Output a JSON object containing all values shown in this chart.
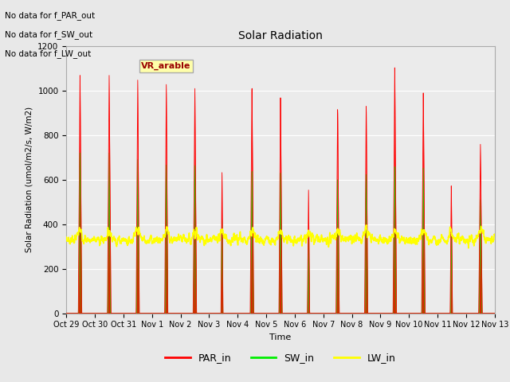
{
  "title": "Solar Radiation",
  "xlabel": "Time",
  "ylabel": "Solar Radiation (umol/m2/s, W/m2)",
  "ylim": [
    0,
    1200
  ],
  "figsize": [
    6.4,
    4.8
  ],
  "dpi": 100,
  "bg_color": "#e8e8e8",
  "plot_bg_color": "#ebebeb",
  "text_annotations": [
    "No data for f_PAR_out",
    "No data for f_SW_out",
    "No data for f_LW_out"
  ],
  "tick_labels": [
    "Oct 29",
    "Oct 30",
    "Oct 31",
    "Nov 1",
    "Nov 2",
    "Nov 3",
    "Nov 4",
    "Nov 5",
    "Nov 6",
    "Nov 7",
    "Nov 8",
    "Nov 9",
    "Nov 10",
    "Nov 11",
    "Nov 12",
    "Nov 13"
  ],
  "par_color": "#ff0000",
  "sw_color": "#00ee00",
  "lw_color": "#ffff00",
  "total_days": 15,
  "pts_per_day": 240,
  "lw_base": 330,
  "peak_heights_par": [
    1080,
    1075,
    1060,
    1045,
    1030,
    660,
    1040,
    1005,
    575,
    940,
    950,
    1120,
    1000,
    590,
    760
  ],
  "peak_heights_sw": [
    730,
    725,
    700,
    680,
    680,
    450,
    660,
    660,
    380,
    620,
    640,
    670,
    660,
    380,
    510
  ],
  "peak_offsets": [
    0.48,
    0.5,
    0.5,
    0.5,
    0.5,
    0.45,
    0.5,
    0.5,
    0.48,
    0.5,
    0.5,
    0.5,
    0.5,
    0.48,
    0.5
  ],
  "width_par": [
    0.06,
    0.06,
    0.055,
    0.055,
    0.06,
    0.035,
    0.06,
    0.055,
    0.04,
    0.055,
    0.055,
    0.06,
    0.06,
    0.04,
    0.06
  ],
  "width_sw": [
    0.05,
    0.05,
    0.045,
    0.045,
    0.05,
    0.03,
    0.05,
    0.045,
    0.03,
    0.045,
    0.045,
    0.05,
    0.05,
    0.03,
    0.05
  ],
  "lw_noise_seed": 7,
  "lw_amplitude": 30,
  "lw_bump_scale": 40,
  "grid_color": "#ffffff",
  "grid_lw": 0.8,
  "yticks": [
    0,
    200,
    400,
    600,
    800,
    1000,
    1200
  ]
}
